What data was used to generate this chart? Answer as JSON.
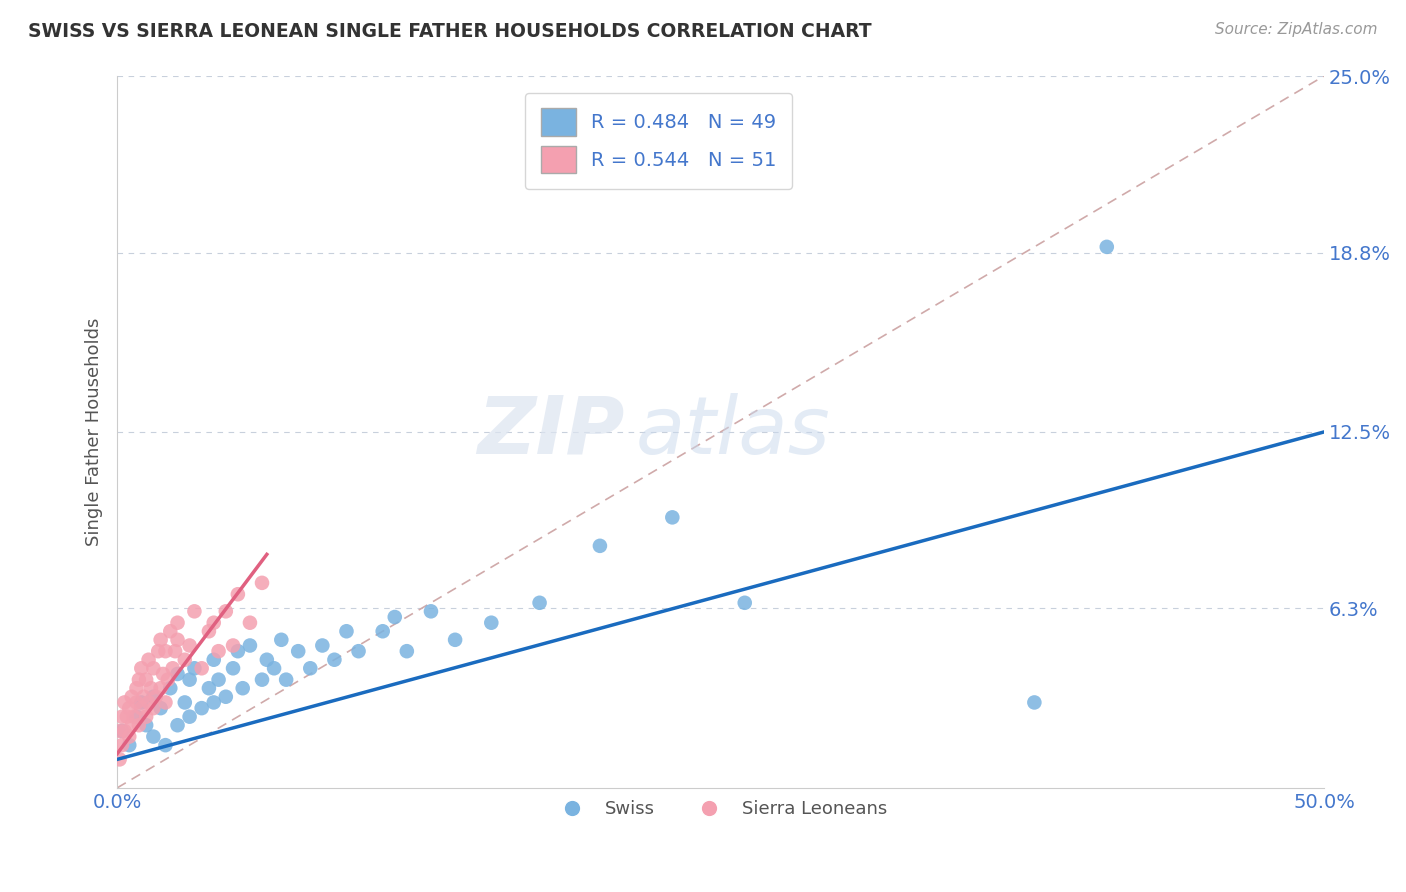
{
  "title": "SWISS VS SIERRA LEONEAN SINGLE FATHER HOUSEHOLDS CORRELATION CHART",
  "source_text": "Source: ZipAtlas.com",
  "ylabel": "Single Father Households",
  "xlim": [
    0.0,
    0.5
  ],
  "ylim": [
    0.0,
    0.25
  ],
  "ytick_labels": [
    "6.3%",
    "12.5%",
    "18.8%",
    "25.0%"
  ],
  "ytick_values": [
    0.063,
    0.125,
    0.188,
    0.25
  ],
  "legend_swiss_R": 0.484,
  "legend_swiss_N": 49,
  "legend_sierra_R": 0.544,
  "legend_sierra_N": 51,
  "swiss_color": "#7ab3e0",
  "sierra_color": "#f4a0b0",
  "swiss_line_color": "#1a6bbf",
  "sierra_line_color": "#e06080",
  "ref_line_color": "#d0aaaa",
  "title_color": "#333333",
  "axis_label_color": "#555555",
  "tick_label_color": "#4477cc",
  "background_color": "#ffffff",
  "watermark_zip": "ZIP",
  "watermark_atlas": "atlas",
  "swiss_scatter_x": [
    0.002,
    0.005,
    0.008,
    0.01,
    0.012,
    0.015,
    0.015,
    0.018,
    0.02,
    0.022,
    0.025,
    0.025,
    0.028,
    0.03,
    0.03,
    0.032,
    0.035,
    0.038,
    0.04,
    0.04,
    0.042,
    0.045,
    0.048,
    0.05,
    0.052,
    0.055,
    0.06,
    0.062,
    0.065,
    0.068,
    0.07,
    0.075,
    0.08,
    0.085,
    0.09,
    0.095,
    0.1,
    0.11,
    0.115,
    0.12,
    0.13,
    0.14,
    0.155,
    0.175,
    0.2,
    0.23,
    0.26,
    0.38,
    0.41
  ],
  "swiss_scatter_y": [
    0.02,
    0.015,
    0.025,
    0.03,
    0.022,
    0.018,
    0.032,
    0.028,
    0.015,
    0.035,
    0.022,
    0.04,
    0.03,
    0.025,
    0.038,
    0.042,
    0.028,
    0.035,
    0.03,
    0.045,
    0.038,
    0.032,
    0.042,
    0.048,
    0.035,
    0.05,
    0.038,
    0.045,
    0.042,
    0.052,
    0.038,
    0.048,
    0.042,
    0.05,
    0.045,
    0.055,
    0.048,
    0.055,
    0.06,
    0.048,
    0.062,
    0.052,
    0.058,
    0.065,
    0.085,
    0.095,
    0.065,
    0.03,
    0.19
  ],
  "sierra_scatter_x": [
    0.001,
    0.001,
    0.002,
    0.002,
    0.003,
    0.003,
    0.004,
    0.005,
    0.005,
    0.006,
    0.006,
    0.007,
    0.008,
    0.008,
    0.009,
    0.009,
    0.01,
    0.01,
    0.011,
    0.012,
    0.012,
    0.013,
    0.013,
    0.014,
    0.015,
    0.015,
    0.016,
    0.017,
    0.018,
    0.018,
    0.019,
    0.02,
    0.02,
    0.021,
    0.022,
    0.023,
    0.024,
    0.025,
    0.025,
    0.028,
    0.03,
    0.032,
    0.035,
    0.038,
    0.04,
    0.042,
    0.045,
    0.048,
    0.05,
    0.055,
    0.06
  ],
  "sierra_scatter_y": [
    0.01,
    0.02,
    0.015,
    0.025,
    0.02,
    0.03,
    0.025,
    0.018,
    0.028,
    0.022,
    0.032,
    0.025,
    0.035,
    0.03,
    0.022,
    0.038,
    0.028,
    0.042,
    0.032,
    0.025,
    0.038,
    0.03,
    0.045,
    0.035,
    0.028,
    0.042,
    0.032,
    0.048,
    0.035,
    0.052,
    0.04,
    0.03,
    0.048,
    0.038,
    0.055,
    0.042,
    0.048,
    0.052,
    0.058,
    0.045,
    0.05,
    0.062,
    0.042,
    0.055,
    0.058,
    0.048,
    0.062,
    0.05,
    0.068,
    0.058,
    0.072
  ],
  "swiss_line_x0": 0.0,
  "swiss_line_x1": 0.5,
  "swiss_line_y0": 0.01,
  "swiss_line_y1": 0.125,
  "sierra_line_x0": 0.0,
  "sierra_line_x1": 0.062,
  "sierra_line_y0": 0.012,
  "sierra_line_y1": 0.082
}
